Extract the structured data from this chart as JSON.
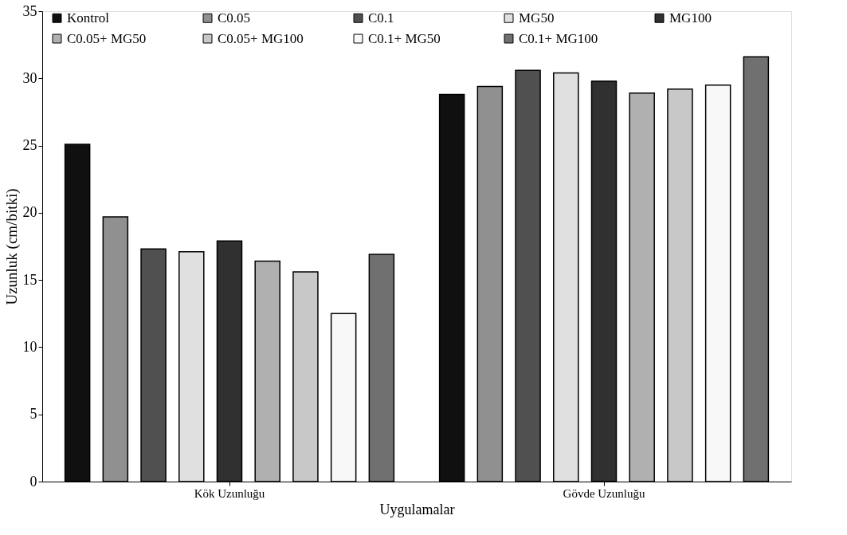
{
  "chart_data": {
    "type": "bar",
    "xlabel": "Uygulamalar",
    "ylabel": "Uzunluk (cm/bitki)",
    "categories": [
      "Kök Uzunluğu",
      "Gövde Uzunluğu"
    ],
    "series": [
      {
        "name": "Kontrol",
        "color": "#101010",
        "values": [
          25.1,
          28.8
        ]
      },
      {
        "name": "C0.05",
        "color": "#909090",
        "values": [
          19.7,
          29.4
        ]
      },
      {
        "name": "C0.1",
        "color": "#505050",
        "values": [
          17.3,
          30.6
        ]
      },
      {
        "name": "MG50",
        "color": "#e0e0e0",
        "values": [
          17.1,
          30.4
        ]
      },
      {
        "name": "MG100",
        "color": "#303030",
        "values": [
          17.9,
          29.8
        ]
      },
      {
        "name": "C0.05+ MG50",
        "color": "#b0b0b0",
        "values": [
          16.4,
          28.9
        ]
      },
      {
        "name": "C0.05+ MG100",
        "color": "#c8c8c8",
        "values": [
          15.6,
          29.2
        ]
      },
      {
        "name": "C0.1+ MG50",
        "color": "#f8f8f8",
        "values": [
          12.5,
          29.5
        ]
      },
      {
        "name": "C0.1+ MG100",
        "color": "#707070",
        "values": [
          16.9,
          31.6
        ]
      }
    ],
    "ylim": [
      0,
      35
    ],
    "yticks": [
      0,
      5,
      10,
      15,
      20,
      25,
      30,
      35
    ],
    "grid": false,
    "legend": "top"
  }
}
